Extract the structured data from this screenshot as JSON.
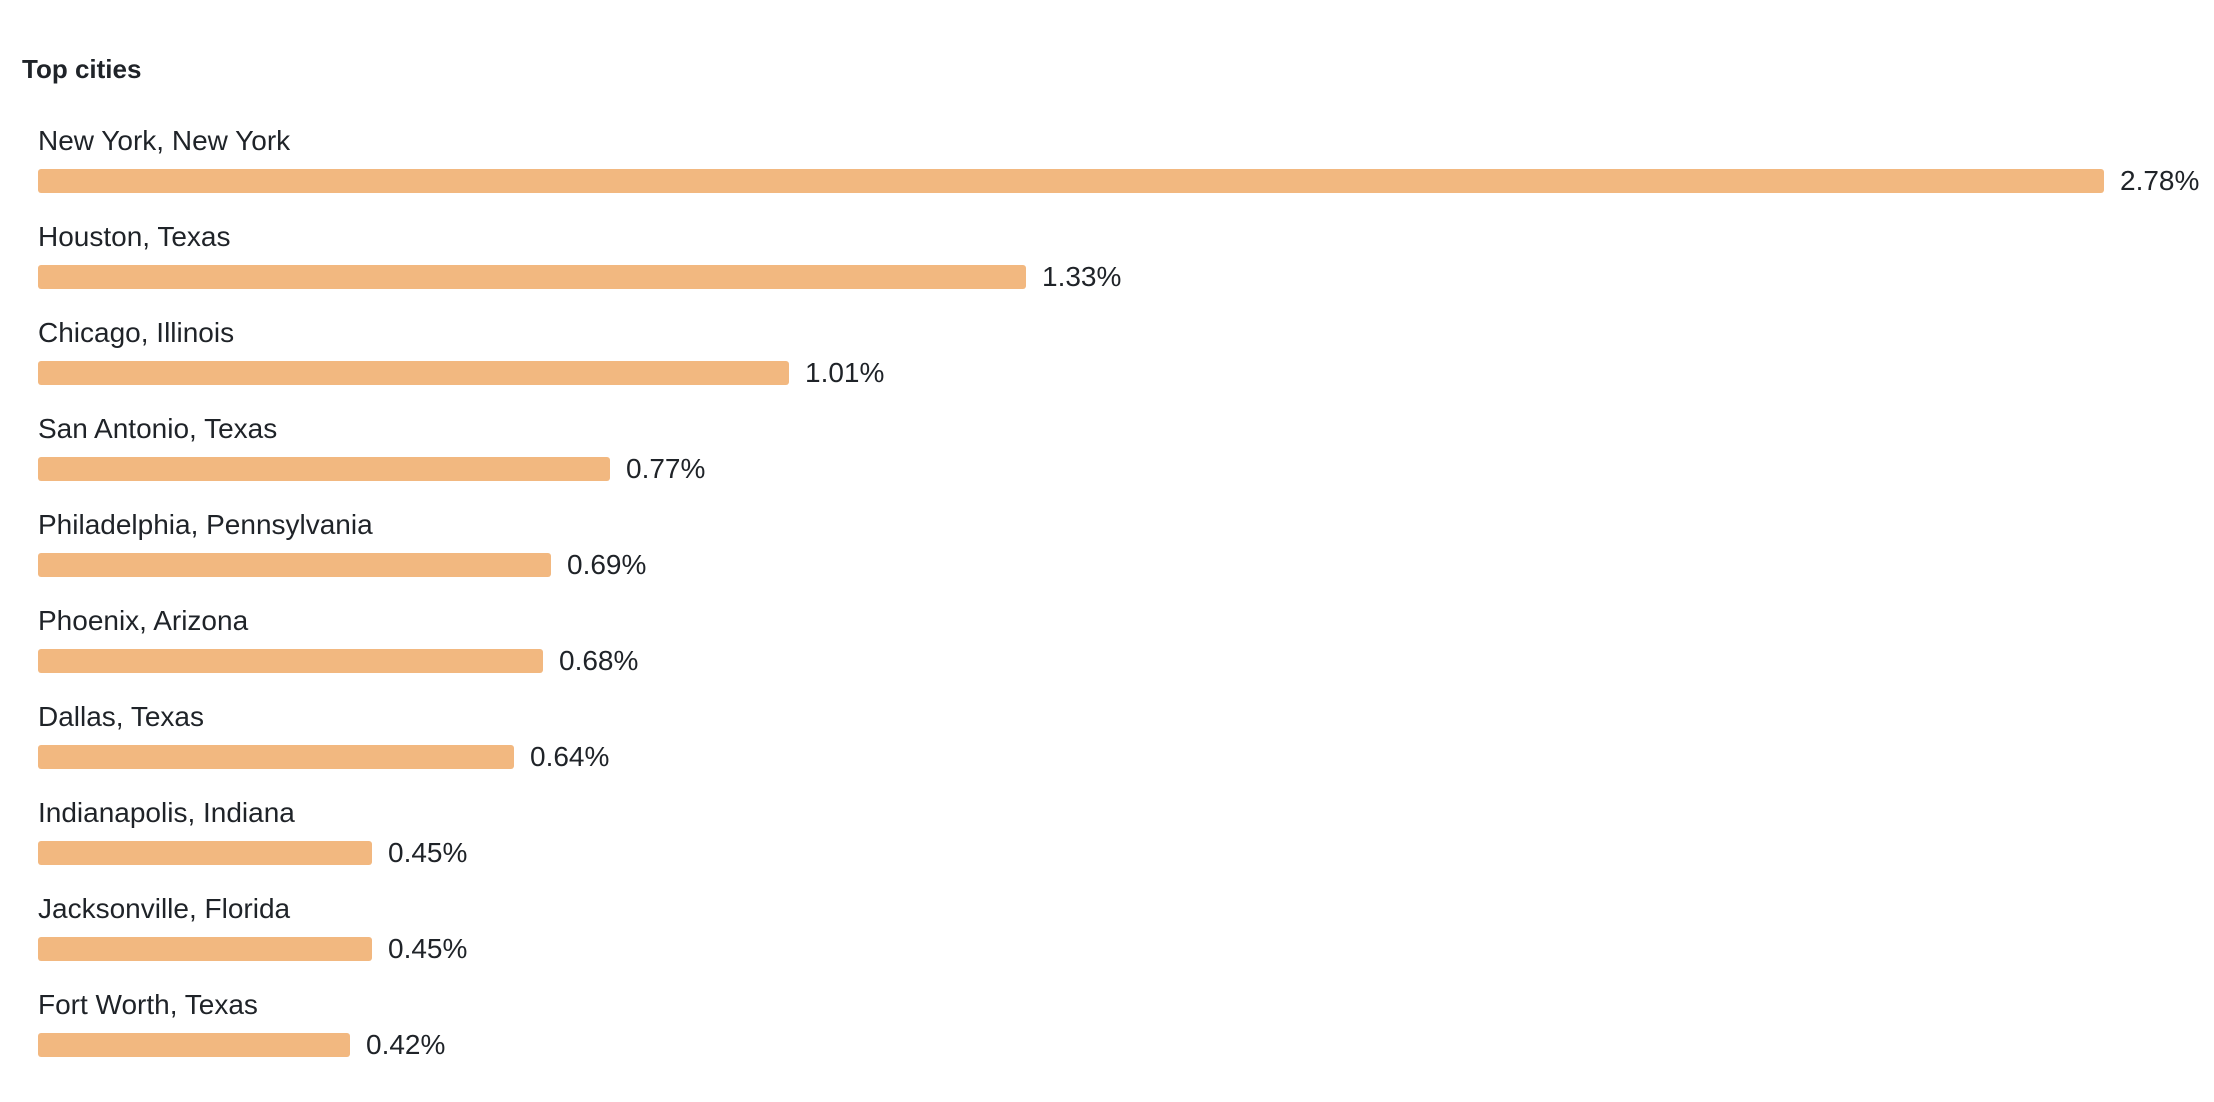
{
  "title": "Top cities",
  "chart_data": {
    "type": "bar",
    "orientation": "horizontal",
    "title": "Top cities",
    "bar_color": "#f2b880",
    "categories": [
      "New York, New York",
      "Houston, Texas",
      "Chicago, Illinois",
      "San Antonio, Texas",
      "Philadelphia, Pennsylvania",
      "Phoenix, Arizona",
      "Dallas, Texas",
      "Indianapolis, Indiana",
      "Jacksonville, Florida",
      "Fort Worth, Texas"
    ],
    "values": [
      2.78,
      1.33,
      1.01,
      0.77,
      0.69,
      0.68,
      0.64,
      0.45,
      0.45,
      0.42
    ],
    "value_labels": [
      "2.78%",
      "1.33%",
      "1.01%",
      "0.77%",
      "0.69%",
      "0.68%",
      "0.64%",
      "0.45%",
      "0.45%",
      "0.42%"
    ]
  }
}
